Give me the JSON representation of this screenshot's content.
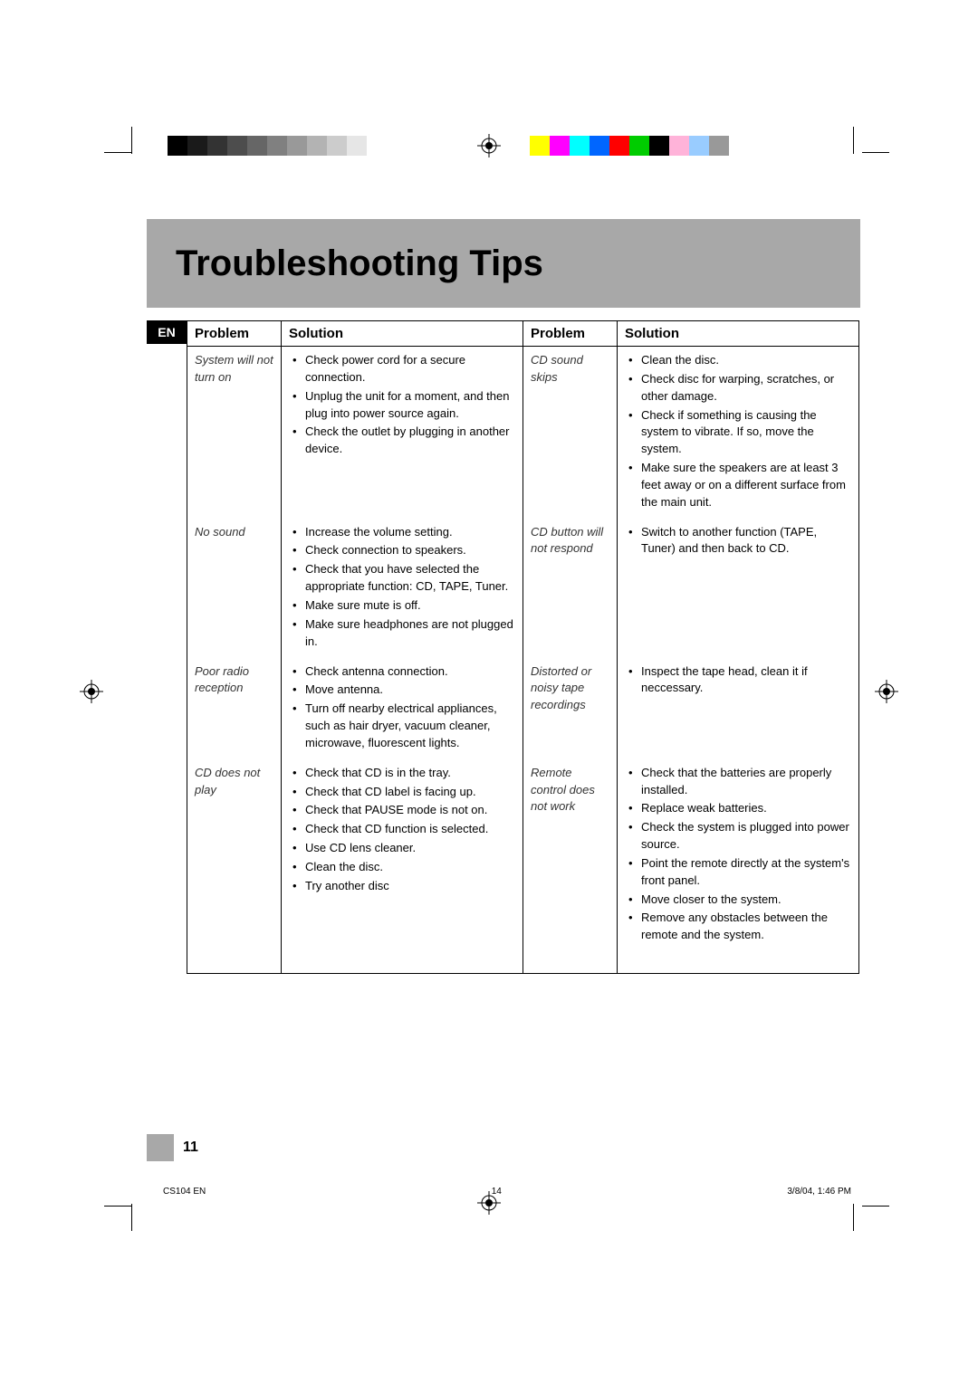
{
  "title": "Troubleshooting Tips",
  "lang_badge": "EN",
  "headers": {
    "problem": "Problem",
    "solution": "Solution"
  },
  "left_column": [
    {
      "problem": "System will not turn on",
      "solutions": [
        "Check power cord for a secure connection.",
        "Unplug the unit for a moment, and then plug into power source again.",
        "Check the outlet by plugging in another device."
      ]
    },
    {
      "problem": "No sound",
      "solutions": [
        "Increase the volume setting.",
        "Check connection to speakers.",
        "Check that you have selected the appropriate function: CD, TAPE, Tuner.",
        "Make sure mute is off.",
        "Make sure headphones are not plugged in."
      ]
    },
    {
      "problem": "Poor radio reception",
      "solutions": [
        "Check antenna connection.",
        "Move antenna.",
        "Turn off nearby electrical appliances, such as hair dryer, vacuum cleaner, microwave, fluorescent lights."
      ]
    },
    {
      "problem": "CD does not play",
      "solutions": [
        "Check that CD is in the tray.",
        "Check that CD label is facing up.",
        "Check that PAUSE mode is not on.",
        "Check that CD function is selected.",
        "Use CD lens cleaner.",
        "Clean the disc.",
        "Try another disc"
      ]
    }
  ],
  "right_column": [
    {
      "problem": "CD sound skips",
      "solutions": [
        "Clean the disc.",
        "Check disc for warping, scratches, or other damage.",
        "Check if something is causing the system to  vibrate. If so, move the system.",
        "Make sure the speakers are at least 3 feet away or on a different surface from the main unit."
      ]
    },
    {
      "problem": "CD button will not respond",
      "solutions": [
        "Switch to another function (TAPE, Tuner) and then back to CD."
      ]
    },
    {
      "problem": "Distorted or noisy tape recordings",
      "solutions": [
        "Inspect the tape head, clean it if neccessary."
      ]
    },
    {
      "problem": "Remote control does not work",
      "solutions": [
        "Check that the batteries are properly installed.",
        "Replace weak batteries.",
        "Check the system is plugged into power source.",
        "Point the remote directly at the system's front panel.",
        "Move closer to the system.",
        "Remove any obstacles between the remote and the system."
      ]
    }
  ],
  "gray_swatches": [
    "#000000",
    "#1a1a1a",
    "#333333",
    "#4d4d4d",
    "#666666",
    "#808080",
    "#999999",
    "#b3b3b3",
    "#cccccc",
    "#e6e6e6"
  ],
  "color_swatches": [
    "#ffff00",
    "#ff00ff",
    "#00ffff",
    "#0066ff",
    "#ff0000",
    "#00cc00",
    "#000000",
    "#ffb3d9",
    "#99ccff",
    "#999999"
  ],
  "page_number": "11",
  "footer": {
    "doc_id": "CS104 EN",
    "sheet": "14",
    "timestamp": "3/8/04, 1:46 PM"
  },
  "colors": {
    "band_gray": "#a8a8a8",
    "text": "#000000",
    "bg": "#ffffff"
  },
  "typography": {
    "title_fontsize": 40,
    "body_fontsize": 13,
    "header_fontsize": 15
  }
}
